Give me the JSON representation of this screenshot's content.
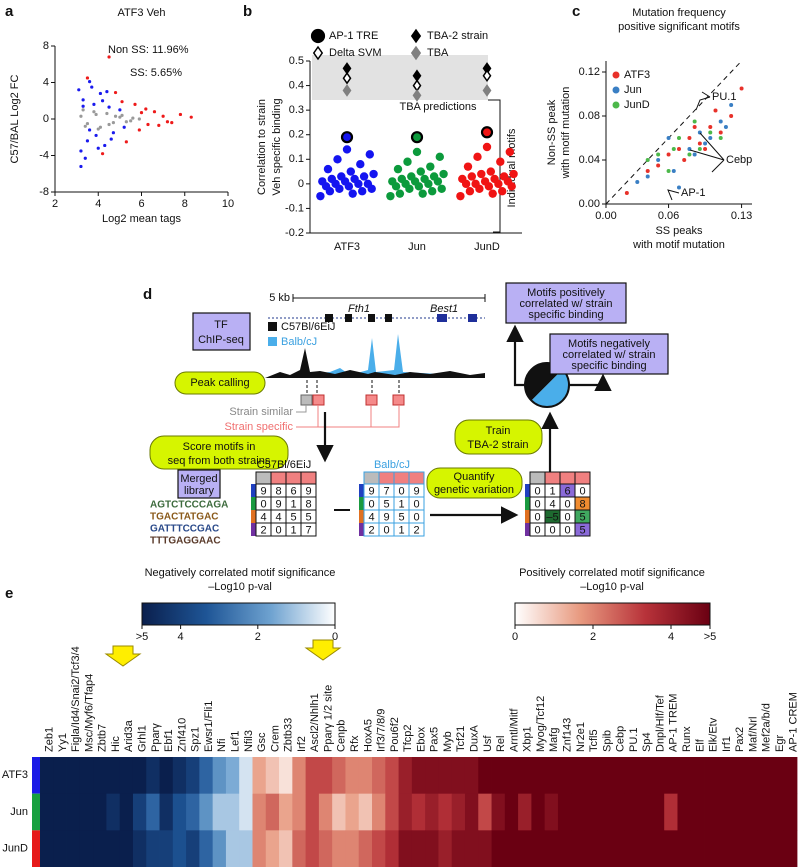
{
  "chart_data": [
    {
      "label": "a",
      "type": "scatter",
      "title": "ATF3 Veh",
      "x_label": "Log2 mean tags",
      "y_label": "C57/BAL Log2 FC",
      "annotations": [
        "Non SS: 11.96%",
        "SS: 5.65%"
      ],
      "xlim": [
        2,
        10
      ],
      "xticks": [
        2,
        4,
        6,
        8,
        10
      ],
      "ylim": [
        -8,
        8
      ],
      "yticks": [
        -8,
        -4,
        0,
        4,
        8
      ],
      "series": [
        {
          "color": "#9a9a9a",
          "x": [
            3.2,
            3.5,
            3.8,
            4.1,
            4.4,
            4.7,
            5.0,
            5.3,
            5.6,
            5.9,
            3.4,
            3.9,
            4.5,
            5.1,
            3.3,
            4.0,
            4.8,
            5.5
          ],
          "values": [
            0.3,
            -0.5,
            0.8,
            -0.9,
            0.6,
            -0.4,
            0.2,
            -0.3,
            0.1,
            0.0,
            -0.8,
            0.5,
            -0.6,
            0.4,
            1.0,
            -1.1,
            0.3,
            -0.2
          ]
        },
        {
          "color": "#1a1aee",
          "x": [
            3.1,
            3.2,
            3.3,
            3.5,
            3.6,
            3.8,
            3.9,
            4.1,
            4.3,
            4.5,
            4.7,
            5.0,
            5.2,
            3.4,
            3.7,
            4.0,
            4.2,
            4.6,
            3.3,
            3.6,
            4.4,
            3.2
          ],
          "values": [
            3.2,
            -3.5,
            2.1,
            -2.4,
            4.1,
            1.6,
            -1.8,
            2.8,
            -2.9,
            1.3,
            -1.5,
            1.0,
            -0.9,
            -4.3,
            3.5,
            -3.2,
            2.0,
            -2.2,
            1.4,
            -1.2,
            3.0,
            -5.2
          ]
        },
        {
          "color": "#ee1a1a",
          "x": [
            3.5,
            4.2,
            4.8,
            5.3,
            5.7,
            6.0,
            6.3,
            6.6,
            7.0,
            7.4,
            7.8,
            8.3,
            5.1,
            5.9,
            6.8,
            4.5,
            6.2,
            7.2
          ],
          "values": [
            4.5,
            -3.8,
            2.9,
            -2.5,
            1.6,
            0.7,
            -0.6,
            0.8,
            0.3,
            -0.4,
            0.5,
            0.2,
            1.9,
            -1.2,
            -0.7,
            6.8,
            1.1,
            -0.3
          ]
        }
      ]
    },
    {
      "label": "b",
      "type": "strip",
      "y_label": [
        "Correlation to strain",
        "Veh specific binding"
      ],
      "categories": [
        "ATF3",
        "Jun",
        "JunD"
      ],
      "category_colors": [
        "#1414f0",
        "#0c9a3c",
        "#f01414"
      ],
      "ylim": [
        -0.2,
        0.5
      ],
      "yticks": [
        -0.2,
        -0.1,
        0,
        0.1,
        0.2,
        0.3,
        0.4,
        0.5
      ],
      "band_label": "TBA predictions",
      "series": [
        {
          "name": "Individual motifs",
          "values": [
            [
              -0.05,
              -0.04,
              -0.03,
              -0.03,
              -0.02,
              -0.02,
              -0.01,
              -0.01,
              0,
              0,
              0,
              0.01,
              0.01,
              0.02,
              0.02,
              0.03,
              0.03,
              0.04,
              0.05,
              0.06,
              0.08,
              0.1,
              0.12,
              0.14
            ],
            [
              -0.05,
              -0.04,
              -0.04,
              -0.03,
              -0.02,
              -0.02,
              -0.01,
              -0.01,
              0,
              0,
              0.01,
              0.01,
              0.01,
              0.02,
              0.02,
              0.03,
              0.03,
              0.04,
              0.05,
              0.06,
              0.07,
              0.09,
              0.11,
              0.13
            ],
            [
              -0.05,
              -0.04,
              -0.03,
              -0.03,
              -0.02,
              -0.01,
              -0.01,
              0,
              0,
              0,
              0.01,
              0.01,
              0.02,
              0.02,
              0.03,
              0.03,
              0.04,
              0.04,
              0.05,
              0.07,
              0.09,
              0.11,
              0.13,
              0.15
            ]
          ]
        },
        {
          "name": "AP-1 TRE",
          "marker": "circle",
          "color": "#000000",
          "values": [
            0.19,
            0.19,
            0.21
          ]
        },
        {
          "name": "TBA-2 strain",
          "marker": "diamond",
          "color": "#000000",
          "values": [
            0.47,
            0.44,
            0.47
          ]
        },
        {
          "name": "Delta SVM",
          "marker": "diamond-open",
          "color": "#000000",
          "values": [
            0.43,
            0.4,
            0.44
          ]
        },
        {
          "name": "TBA",
          "marker": "diamond",
          "color": "#808080",
          "values": [
            0.38,
            0.36,
            0.38
          ]
        }
      ]
    },
    {
      "label": "c",
      "type": "scatter",
      "title": [
        "Mutation frequency",
        "positive significant motifs"
      ],
      "x_label": [
        "SS peaks",
        "with motif mutation"
      ],
      "y_label": [
        "Non-SS peak",
        "with motif mutation"
      ],
      "annotations": [
        "PU.1",
        "Cebp",
        "AP-1"
      ],
      "legend": "top-left",
      "xlim": [
        0,
        0.14
      ],
      "xticks": [
        {
          "value": 0,
          "label": "0.00"
        },
        0.06,
        0.13
      ],
      "ylim": [
        0,
        0.13
      ],
      "yticks": [
        {
          "value": 0,
          "label": "0.00"
        },
        0.04,
        0.08,
        0.12
      ],
      "series": [
        {
          "name": "ATF3",
          "color": "#e8312a",
          "x": [
            0.04,
            0.06,
            0.07,
            0.08,
            0.09,
            0.1,
            0.11,
            0.12,
            0.13,
            0.075,
            0.085,
            0.095,
            0.105,
            0.02,
            0.05
          ],
          "values": [
            0.03,
            0.045,
            0.05,
            0.06,
            0.055,
            0.07,
            0.065,
            0.08,
            0.105,
            0.04,
            0.07,
            0.05,
            0.085,
            0.01,
            0.035
          ]
        },
        {
          "name": "Jun",
          "color": "#3a7fc4",
          "x": [
            0.03,
            0.05,
            0.065,
            0.08,
            0.09,
            0.1,
            0.11,
            0.12,
            0.07,
            0.085,
            0.095,
            0.115,
            0.06,
            0.04
          ],
          "values": [
            0.02,
            0.04,
            0.03,
            0.05,
            0.065,
            0.06,
            0.075,
            0.09,
            0.015,
            0.045,
            0.055,
            0.07,
            0.06,
            0.025
          ]
        },
        {
          "name": "JunD",
          "color": "#4cb84a",
          "x": [
            0.04,
            0.06,
            0.07,
            0.08,
            0.09,
            0.1,
            0.11,
            0.065,
            0.085,
            0.05
          ],
          "values": [
            0.04,
            0.03,
            0.06,
            0.045,
            0.05,
            0.065,
            0.06,
            0.05,
            0.075,
            0.045
          ]
        }
      ]
    },
    {
      "label": "e",
      "type": "heatmap",
      "rows": [
        "ATF3",
        "Jun",
        "JunD"
      ],
      "row_colors": [
        "#1a1ae6",
        "#18a040",
        "#e61a1a"
      ],
      "columns": [
        "Zeb1",
        "Yy1",
        "Figla/Id4/Snai2/Tcf3/4",
        "Msc/Myf6/Tfap4",
        "Zbtb7",
        "Hic",
        "Arid3a",
        "Grhl1",
        "Pparγ",
        "Ebf1",
        "Znf410",
        "Spz1",
        "Ewsr1/Fli1",
        "Nfi",
        "Lef1",
        "Nfil3",
        "Gsc",
        "Crem",
        "Zbtb33",
        "Irf2",
        "Ascl2/Nhlh1",
        "Pparγ 1/2 site",
        "Cenpb",
        "Rfx",
        "HoxA5",
        "Irf3/7/8/9",
        "Pou6f2",
        "Tfcp2",
        "Ebox",
        "Pax5",
        "Myb",
        "Tcf21",
        "DuxA",
        "Usf",
        "Rel",
        "Arntl/Mitf",
        "Xbp1",
        "Myog/Tcf12",
        "Mafg",
        "Znf143",
        "Nr2e1",
        "Tcfl5",
        "Spib",
        "Cebp",
        "PU.1",
        "Sp4",
        "Dnpl/Hlf/Tef",
        "AP-1 TREM",
        "Runx",
        "Elf",
        "Elk/Etv",
        "Irf1",
        "Pax2",
        "Maf/Nrl",
        "Mef2a/b/d",
        "Egr",
        "AP-1 CREM"
      ],
      "values": [
        [
          -5,
          -5,
          -5,
          -5,
          -5,
          -5,
          -5,
          -5,
          -4.5,
          -5,
          -4.5,
          -4,
          -3,
          -2,
          -1.5,
          -0.5,
          1.5,
          1,
          0.5,
          2,
          3,
          3,
          2.5,
          2,
          2,
          2.5,
          3,
          4,
          4.5,
          4.5,
          4.5,
          4.5,
          4.5,
          5,
          5,
          5,
          5,
          5,
          5,
          5,
          5,
          5,
          5,
          5,
          5,
          5,
          5,
          5,
          5,
          5,
          5,
          5,
          5,
          5,
          5,
          5,
          5
        ],
        [
          -5,
          -5,
          -5,
          -5,
          -5,
          -4.5,
          -5,
          -4,
          -3,
          -4.5,
          -3.5,
          -3,
          -2,
          -1,
          -1,
          -0.5,
          2,
          2.5,
          1.5,
          2,
          3,
          2,
          1,
          1.5,
          1,
          2,
          3,
          4,
          3.5,
          4,
          3.5,
          4,
          4.5,
          3,
          4.5,
          5,
          4,
          5,
          4.5,
          5,
          5,
          5,
          5,
          5,
          5,
          5,
          5,
          3.5,
          5,
          5,
          5,
          5,
          5,
          5,
          5,
          5,
          5
        ],
        [
          -5,
          -5,
          -5,
          -5,
          -5,
          -5,
          -5,
          -4.5,
          -4,
          -4,
          -3.5,
          -4,
          -3,
          -2,
          -1,
          -1,
          2,
          1.5,
          1,
          2.5,
          3,
          2.5,
          2,
          2,
          2.5,
          3,
          3.5,
          4.5,
          4.5,
          4.5,
          4,
          4.5,
          4.5,
          4.5,
          5,
          5,
          5,
          5,
          5,
          5,
          5,
          5,
          5,
          5,
          5,
          5,
          5,
          5,
          5,
          5,
          5,
          5,
          5,
          5,
          5,
          5,
          5
        ]
      ],
      "colorbars": [
        {
          "title": [
            "Negatively correlated motif significance",
            "–Log10 p-val"
          ],
          "lim": [
            5,
            0
          ],
          "ticks": [
            {
              "value": 5,
              "label": ">5"
            },
            4,
            2,
            0
          ],
          "colors": [
            "#0a1f4d",
            "#1e5596",
            "#6ea2d0",
            "#ffffff"
          ]
        },
        {
          "title": [
            "Positively correlated motif significance",
            "–Log10 p-val"
          ],
          "lim": [
            0,
            5
          ],
          "ticks": [
            0,
            2,
            4,
            {
              "value": 5,
              "label": ">5"
            }
          ],
          "colors": [
            "#ffffff",
            "#e89a80",
            "#b8333a",
            "#6a0012"
          ]
        }
      ]
    }
  ],
  "diagram": {
    "label": "d",
    "scale": "5 kb",
    "genes": [
      "Fth1",
      "Best1"
    ],
    "chipseq": [
      "TF",
      "ChIP-seq"
    ],
    "tracks": [
      "C57Bl/6EiJ",
      "Balb/cJ"
    ],
    "peak_calling": "Peak calling",
    "strain_similar": "Strain similar",
    "strain_specific": "Strain specific",
    "score_motifs": [
      "Score motifs in",
      "seq from both strains"
    ],
    "merged_library": [
      "Merged",
      "library"
    ],
    "motifs": [
      "AGTCTCCCAGA",
      "TGACTATGAC",
      "GATTTCCGAC",
      "TTTGAGGAAC"
    ],
    "matrix_c57": {
      "label": "C57Bl/6EiJ",
      "rows": [
        [
          9,
          8,
          6,
          9
        ],
        [
          0,
          9,
          1,
          8
        ],
        [
          4,
          4,
          5,
          5
        ],
        [
          2,
          0,
          1,
          7
        ]
      ]
    },
    "matrix_balb": {
      "label": "Balb/cJ",
      "rows": [
        [
          9,
          7,
          0,
          9
        ],
        [
          0,
          5,
          1,
          0
        ],
        [
          4,
          9,
          5,
          0
        ],
        [
          2,
          0,
          1,
          2
        ]
      ]
    },
    "matrix_diff": {
      "rows": [
        [
          0,
          1,
          6,
          0
        ],
        [
          0,
          4,
          0,
          8
        ],
        [
          0,
          "–5",
          0,
          5
        ],
        [
          0,
          0,
          0,
          5
        ]
      ]
    },
    "quantify": [
      "Quantify",
      "genetic variation"
    ],
    "train": [
      "Train",
      "TBA-2 strain"
    ],
    "positive": [
      "Motifs positively",
      "correlated w/ strain",
      "specific binding"
    ],
    "negative": [
      "Motifs negatively",
      "correlated w/ strain",
      "specific binding"
    ]
  }
}
